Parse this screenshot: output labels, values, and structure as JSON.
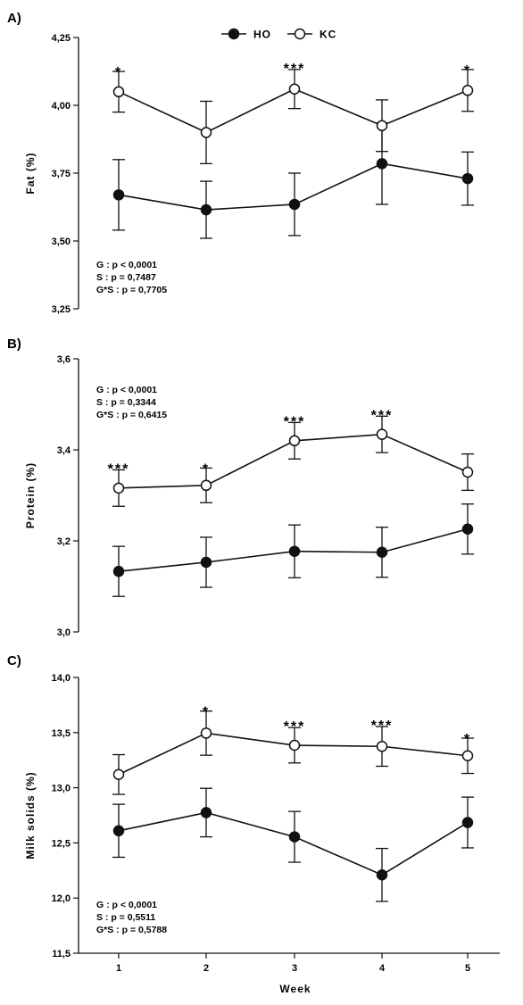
{
  "legend": [
    {
      "name": "HO",
      "marker": "filled"
    },
    {
      "name": "KC",
      "marker": "open"
    }
  ],
  "xlabel": "Week",
  "chart_data": [
    {
      "type": "line",
      "panel_label": "A)",
      "ylabel": "Fat (%)",
      "ylim": [
        3.25,
        4.25
      ],
      "yticks": [
        "3,25",
        "3,50",
        "3,75",
        "4,00",
        "4,25"
      ],
      "ytick_values": [
        3.25,
        3.5,
        3.75,
        4.0,
        4.25
      ],
      "x": [
        1,
        2,
        3,
        4,
        5
      ],
      "series": [
        {
          "name": "HO",
          "marker": "filled",
          "values": [
            3.67,
            3.615,
            3.635,
            3.785,
            3.73
          ],
          "errors": [
            0.13,
            0.105,
            0.115,
            0.15,
            0.098
          ]
        },
        {
          "name": "KC",
          "marker": "open",
          "values": [
            4.05,
            3.9,
            4.06,
            3.925,
            4.055
          ],
          "errors": [
            0.075,
            0.115,
            0.072,
            0.095,
            0.077
          ]
        }
      ],
      "significance": [
        "*",
        "",
        "***",
        "",
        "*"
      ],
      "stats": [
        "G : p < 0,0001",
        "S : p = 0,7487",
        "G*S : p = 0,7705"
      ],
      "stats_position": "bottom-left"
    },
    {
      "type": "line",
      "panel_label": "B)",
      "ylabel": "Protein (%)",
      "ylim": [
        3.0,
        3.6
      ],
      "yticks": [
        "3,0",
        "3,2",
        "3,4",
        "3,6"
      ],
      "ytick_values": [
        3.0,
        3.2,
        3.4,
        3.6
      ],
      "x": [
        1,
        2,
        3,
        4,
        5
      ],
      "series": [
        {
          "name": "HO",
          "marker": "filled",
          "values": [
            3.133,
            3.153,
            3.177,
            3.175,
            3.226
          ],
          "errors": [
            0.055,
            0.055,
            0.058,
            0.055,
            0.055
          ]
        },
        {
          "name": "KC",
          "marker": "open",
          "values": [
            3.316,
            3.322,
            3.42,
            3.434,
            3.351
          ],
          "errors": [
            0.04,
            0.038,
            0.04,
            0.04,
            0.04
          ]
        }
      ],
      "significance": [
        "***",
        "*",
        "***",
        "***",
        ""
      ],
      "stats": [
        "G : p < 0,0001",
        "S : p = 0,3344",
        "G*S : p = 0,6415"
      ],
      "stats_position": "top-left"
    },
    {
      "type": "line",
      "panel_label": "C)",
      "ylabel": "Milk solids (%)",
      "ylim": [
        11.5,
        14.0
      ],
      "yticks": [
        "11,5",
        "12,0",
        "12,5",
        "13,0",
        "13,5",
        "14,0"
      ],
      "ytick_values": [
        11.5,
        12.0,
        12.5,
        13.0,
        13.5,
        14.0
      ],
      "x": [
        1,
        2,
        3,
        4,
        5
      ],
      "xticks": [
        "1",
        "2",
        "3",
        "4",
        "5"
      ],
      "series": [
        {
          "name": "HO",
          "marker": "filled",
          "values": [
            12.61,
            12.775,
            12.555,
            12.21,
            12.685
          ],
          "errors": [
            0.24,
            0.22,
            0.23,
            0.24,
            0.23
          ]
        },
        {
          "name": "KC",
          "marker": "open",
          "values": [
            13.12,
            13.495,
            13.385,
            13.375,
            13.29
          ],
          "errors": [
            0.18,
            0.2,
            0.16,
            0.18,
            0.16
          ]
        }
      ],
      "significance": [
        "",
        "*",
        "***",
        "***",
        "*"
      ],
      "stats": [
        "G : p < 0,0001",
        "S : p = 0,5511",
        "G*S : p = 0,5788"
      ],
      "stats_position": "bottom-left"
    }
  ]
}
